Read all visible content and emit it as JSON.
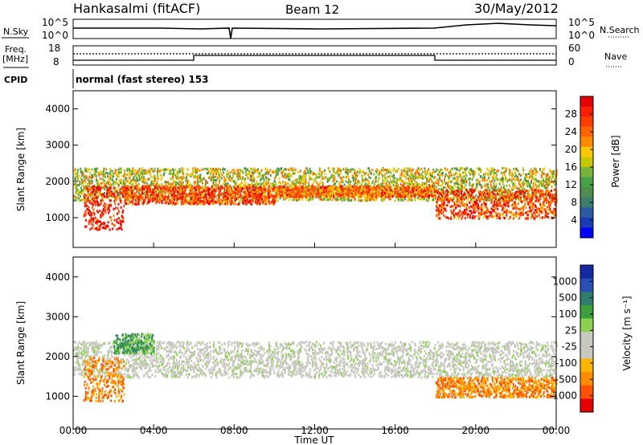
{
  "header": {
    "station": "Hankasalmi (fitACF)",
    "beam": "Beam 12",
    "date": "30/May/2012"
  },
  "status_panels": {
    "nsky_label": "N.Sky",
    "nsearch_label": "N.Search",
    "freq_label": "Freq.",
    "freq_unit": "[MHz]",
    "nave_label": "Nave",
    "cpid_label": "CPID",
    "cpid_text": "normal (fast stereo) 153",
    "noise_ticks_left": [
      "10^5",
      "10^0"
    ],
    "noise_ticks_right": [
      "10^5",
      "10^0"
    ],
    "freq_ticks": [
      "18",
      "8"
    ],
    "nave_ticks": [
      "60",
      "0"
    ],
    "freq_value_mhz": [
      {
        "start": "00:00",
        "end": "06:00",
        "value": 10
      },
      {
        "start": "06:00",
        "end": "18:00",
        "value": 11
      },
      {
        "start": "18:00",
        "end": "24:00",
        "value": 10
      }
    ]
  },
  "colorbars": {
    "power": {
      "label": "Power [dB]",
      "ticks": [
        "28",
        "24",
        "20",
        "16",
        "12",
        "8",
        "4"
      ],
      "colors": [
        "#0000ff",
        "#1a3cb4",
        "#2d5aa0",
        "#3c7d6e",
        "#508c50",
        "#46a046",
        "#78b43c",
        "#c8c800",
        "#ffc800",
        "#ff8c00",
        "#ff6400",
        "#ff3c00",
        "#ff1e00",
        "#e60000"
      ]
    },
    "velocity": {
      "label": "Velocity [m s⁻¹]",
      "ticks": [
        "1000",
        "500",
        "100",
        "25",
        "-25",
        "-100",
        "-500",
        "-1000"
      ],
      "colors": [
        "#1428a0",
        "#2850b4",
        "#2d7d6e",
        "#3ca03c",
        "#8cd250",
        "#c8c8c0",
        "#c8c8c0",
        "#ffb400",
        "#ff8c00",
        "#ff5000",
        "#e60000"
      ]
    }
  },
  "chart_data": [
    {
      "type": "heatmap",
      "name": "power",
      "xlabel": "",
      "ylabel": "Slant Range [km]",
      "x_range": [
        "00:00",
        "24:00"
      ],
      "ylim": [
        180,
        4500
      ],
      "yticks": [
        "4000",
        "3000",
        "2000",
        "1000"
      ],
      "colorbar": "Power [dB]",
      "echo_bands": [
        {
          "t": [
            0,
            24
          ],
          "range_km": [
            1500,
            2400
          ],
          "power_db": 16
        },
        {
          "t": [
            0.5,
            2.5
          ],
          "range_km": [
            700,
            1900
          ],
          "power_db": 26
        },
        {
          "t": [
            2.5,
            10
          ],
          "range_km": [
            1400,
            1900
          ],
          "power_db": 24
        },
        {
          "t": [
            10,
            18
          ],
          "range_km": [
            1600,
            1900
          ],
          "power_db": 22
        },
        {
          "t": [
            18,
            24
          ],
          "range_km": [
            1000,
            1800
          ],
          "power_db": 24
        }
      ]
    },
    {
      "type": "heatmap",
      "name": "velocity",
      "xlabel": "Time UT",
      "ylabel": "Slant Range [km]",
      "x_range": [
        "00:00",
        "24:00"
      ],
      "ylim": [
        180,
        4500
      ],
      "yticks": [
        "4000",
        "3000",
        "2000",
        "1000"
      ],
      "xticks": [
        "00:00",
        "04:00",
        "08:00",
        "12:00",
        "16:00",
        "20:00",
        "00:00"
      ],
      "colorbar": "Velocity [m s⁻¹]",
      "echo_bands": [
        {
          "t": [
            0,
            24
          ],
          "range_km": [
            1500,
            2400
          ],
          "velocity": 0
        },
        {
          "t": [
            0.5,
            2.5
          ],
          "range_km": [
            900,
            2000
          ],
          "velocity": -300
        },
        {
          "t": [
            2,
            4
          ],
          "range_km": [
            2100,
            2600
          ],
          "velocity": 150
        },
        {
          "t": [
            18,
            24
          ],
          "range_km": [
            1000,
            1500
          ],
          "velocity": -300
        }
      ]
    }
  ]
}
